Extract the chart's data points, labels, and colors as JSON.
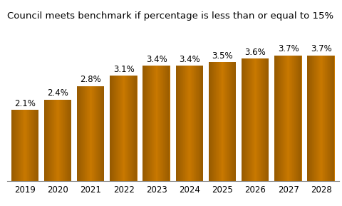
{
  "categories": [
    "2019",
    "2020",
    "2021",
    "2022",
    "2023",
    "2024",
    "2025",
    "2026",
    "2027",
    "2028"
  ],
  "values": [
    2.1,
    2.4,
    2.8,
    3.1,
    3.4,
    3.4,
    3.5,
    3.6,
    3.7,
    3.7
  ],
  "labels": [
    "2.1%",
    "2.4%",
    "2.8%",
    "3.1%",
    "3.4%",
    "3.4%",
    "3.5%",
    "3.6%",
    "3.7%",
    "3.7%"
  ],
  "bar_color": "#C87800",
  "title": "Council meets benchmark if percentage is less than or equal to 15%",
  "title_fontsize": 9.5,
  "label_fontsize": 8.5,
  "tick_fontsize": 8.5,
  "ylim": [
    0,
    4.6
  ],
  "background_color": "#ffffff",
  "bar_width": 0.82
}
